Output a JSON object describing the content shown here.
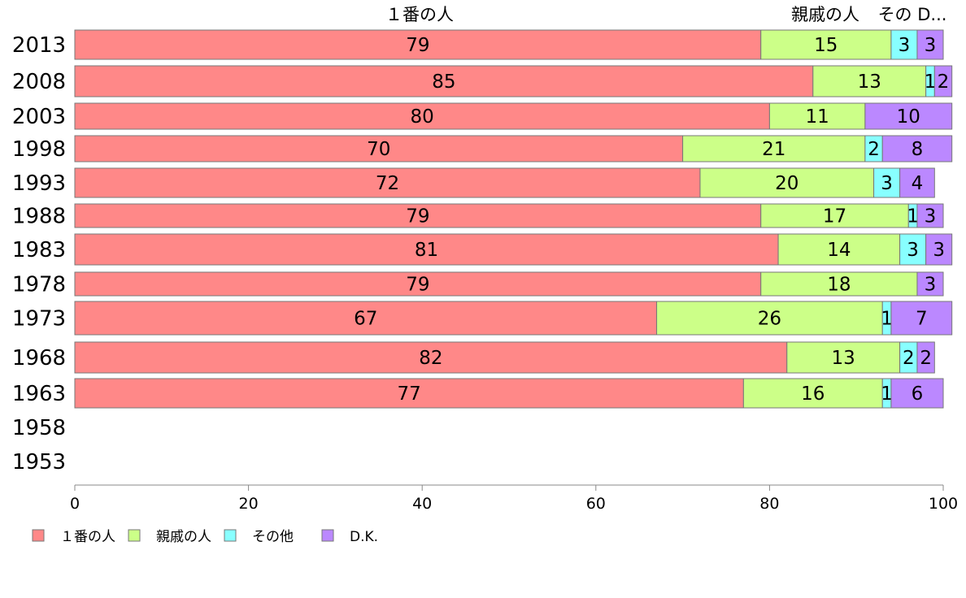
{
  "chart_data": {
    "type": "bar",
    "orientation": "horizontal",
    "stacked": true,
    "categories": [
      "2013",
      "2008",
      "2003",
      "1998",
      "1993",
      "1988",
      "1983",
      "1978",
      "1973",
      "1968",
      "1963",
      "1958",
      "1953"
    ],
    "series": [
      {
        "name": "１番の人",
        "color": "#ff8888",
        "values": [
          79,
          85,
          80,
          70,
          72,
          79,
          81,
          79,
          67,
          82,
          77,
          null,
          null
        ]
      },
      {
        "name": "親戚の人",
        "color": "#ccff88",
        "values": [
          15,
          13,
          11,
          21,
          20,
          17,
          14,
          18,
          26,
          13,
          16,
          null,
          null
        ]
      },
      {
        "name": "その他",
        "color": "#88ffff",
        "values": [
          3,
          1,
          0,
          2,
          3,
          1,
          3,
          0,
          1,
          2,
          1,
          null,
          null
        ]
      },
      {
        "name": "D.K.",
        "color": "#bb88ff",
        "values": [
          3,
          2,
          10,
          8,
          4,
          3,
          3,
          3,
          7,
          2,
          6,
          null,
          null
        ]
      }
    ],
    "segment_labels": [
      [
        "79",
        "15",
        "3",
        "3"
      ],
      [
        "85",
        "13",
        "1",
        "2"
      ],
      [
        "80",
        "11",
        "",
        "10"
      ],
      [
        "70",
        "21",
        "2",
        "8"
      ],
      [
        "72",
        "20",
        "3",
        "4"
      ],
      [
        "79",
        "17",
        "1",
        "3"
      ],
      [
        "81",
        "14",
        "3",
        "3"
      ],
      [
        "79",
        "18",
        "",
        "3"
      ],
      [
        "67",
        "26",
        "1",
        "7"
      ],
      [
        "82",
        "13",
        "2",
        "2"
      ],
      [
        "77",
        "16",
        "1",
        "6"
      ],
      [
        "",
        "",
        "",
        ""
      ],
      [
        "",
        "",
        "",
        ""
      ]
    ],
    "column_headers": [
      "１番の人",
      "親戚の人",
      "その D..."
    ],
    "xlim": [
      0,
      100
    ],
    "xticks": [
      0,
      20,
      40,
      60,
      80,
      100
    ],
    "xtick_labels": [
      "0",
      "20",
      "40",
      "60",
      "80",
      "100"
    ],
    "grid": false,
    "legend_position": "bottom-left"
  }
}
